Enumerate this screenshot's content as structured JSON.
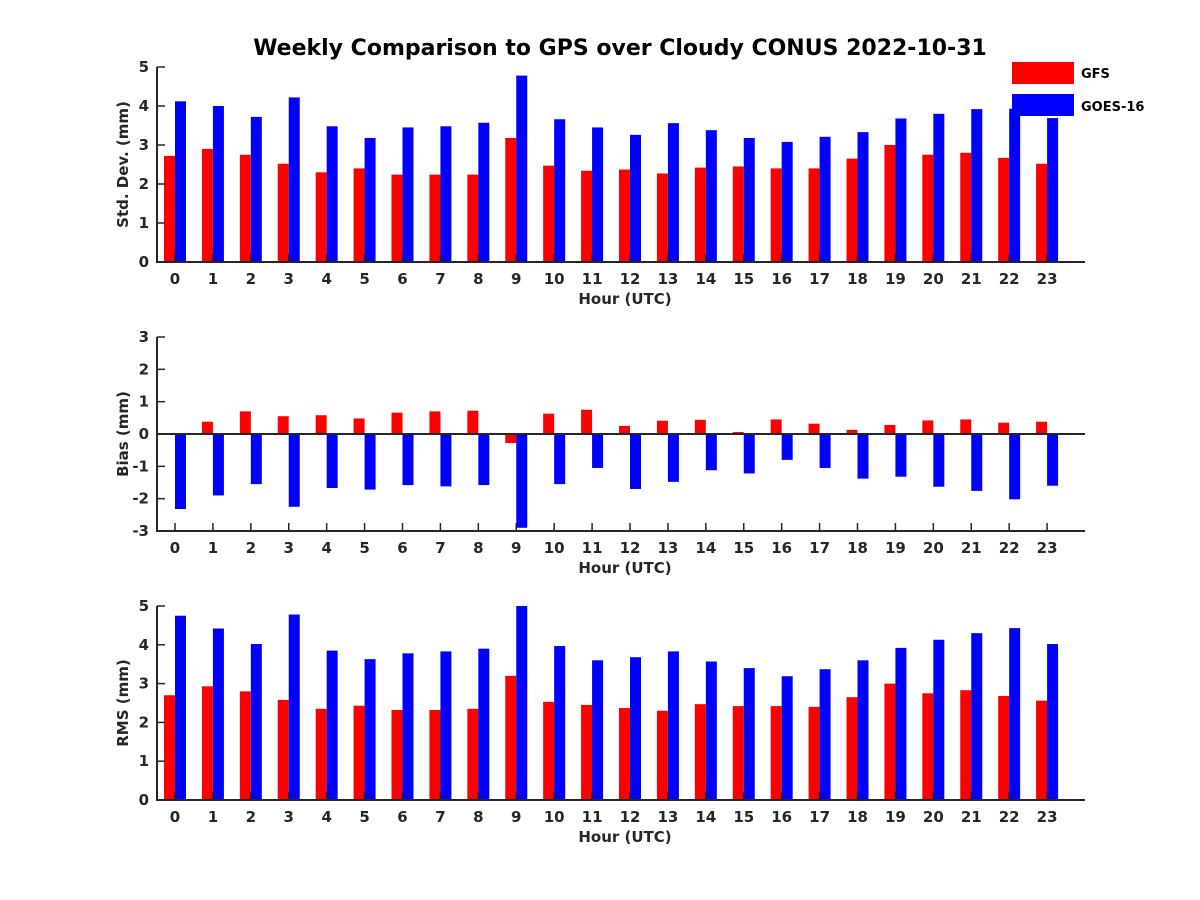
{
  "chart_data": {
    "type": "bar",
    "title": "Weekly Comparison to GPS over Cloudy CONUS 2022-10-31",
    "legend": {
      "placement": "top-right",
      "entries": [
        "GFS",
        "GOES-16"
      ]
    },
    "colors": {
      "GFS": "#ff0000",
      "GOES-16": "#0000ff"
    },
    "categories": [
      "0",
      "1",
      "2",
      "3",
      "4",
      "5",
      "6",
      "7",
      "8",
      "9",
      "10",
      "11",
      "12",
      "13",
      "14",
      "15",
      "16",
      "17",
      "18",
      "19",
      "20",
      "21",
      "22",
      "23"
    ],
    "panels": [
      {
        "ylabel": "Std. Dev. (mm)",
        "xlabel": "Hour (UTC)",
        "ylim": [
          0,
          5
        ],
        "yticks": [
          0,
          1,
          2,
          3,
          4,
          5
        ],
        "grid": false,
        "series": [
          {
            "name": "GFS",
            "values": [
              2.72,
              2.9,
              2.75,
              2.52,
              2.3,
              2.4,
              2.24,
              2.24,
              2.24,
              3.18,
              2.47,
              2.34,
              2.37,
              2.27,
              2.42,
              2.45,
              2.4,
              2.4,
              2.65,
              3.0,
              2.75,
              2.8,
              2.67,
              2.52
            ]
          },
          {
            "name": "GOES-16",
            "values": [
              4.12,
              4.0,
              3.72,
              4.22,
              3.48,
              3.18,
              3.45,
              3.48,
              3.57,
              4.78,
              3.66,
              3.45,
              3.26,
              3.56,
              3.38,
              3.18,
              3.08,
              3.21,
              3.33,
              3.68,
              3.8,
              3.92,
              3.93,
              3.69
            ]
          }
        ]
      },
      {
        "ylabel": "Bias (mm)",
        "xlabel": "Hour (UTC)",
        "ylim": [
          -3,
          3
        ],
        "yticks": [
          -3,
          -2,
          -1,
          0,
          1,
          2,
          3
        ],
        "grid": false,
        "series": [
          {
            "name": "GFS",
            "values": [
              0.0,
              0.38,
              0.7,
              0.55,
              0.58,
              0.48,
              0.66,
              0.7,
              0.72,
              -0.28,
              0.63,
              0.75,
              0.25,
              0.41,
              0.44,
              0.06,
              0.45,
              0.32,
              0.13,
              0.28,
              0.42,
              0.45,
              0.35,
              0.38
            ]
          },
          {
            "name": "GOES-16",
            "values": [
              -2.32,
              -1.9,
              -1.55,
              -2.25,
              -1.67,
              -1.72,
              -1.58,
              -1.62,
              -1.58,
              -2.9,
              -1.55,
              -1.05,
              -1.7,
              -1.48,
              -1.12,
              -1.22,
              -0.8,
              -1.05,
              -1.38,
              -1.32,
              -1.63,
              -1.76,
              -2.02,
              -1.6
            ]
          }
        ]
      },
      {
        "ylabel": "RMS (mm)",
        "xlabel": "Hour (UTC)",
        "ylim": [
          0,
          5
        ],
        "yticks": [
          0,
          1,
          2,
          3,
          4,
          5
        ],
        "grid": false,
        "series": [
          {
            "name": "GFS",
            "values": [
              2.7,
              2.93,
              2.8,
              2.58,
              2.35,
              2.43,
              2.32,
              2.32,
              2.35,
              3.2,
              2.53,
              2.45,
              2.37,
              2.3,
              2.47,
              2.42,
              2.42,
              2.4,
              2.65,
              3.0,
              2.75,
              2.83,
              2.68,
              2.56
            ]
          },
          {
            "name": "GOES-16",
            "values": [
              4.75,
              4.42,
              4.02,
              4.78,
              3.85,
              3.63,
              3.78,
              3.83,
              3.9,
              5.0,
              3.97,
              3.6,
              3.68,
              3.83,
              3.57,
              3.4,
              3.19,
              3.37,
              3.6,
              3.92,
              4.13,
              4.3,
              4.43,
              4.02
            ]
          }
        ]
      }
    ]
  }
}
